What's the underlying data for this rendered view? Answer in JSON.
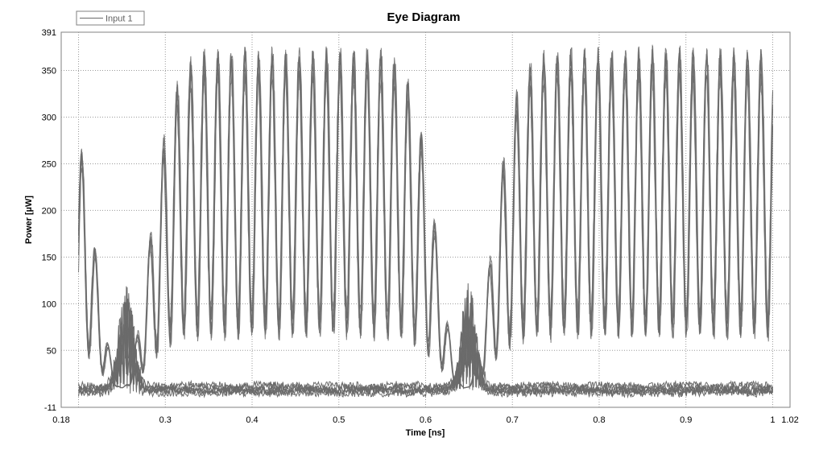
{
  "chart_data": {
    "type": "line",
    "title": "Eye Diagram",
    "xlabel": "Time [ns]",
    "ylabel": "Power [µW]",
    "xlim": [
      0.18,
      1.02
    ],
    "ylim": [
      -11,
      391
    ],
    "xticks": [
      "0.18",
      "0.3",
      "0.4",
      "0.5",
      "0.6",
      "0.7",
      "0.8",
      "0.9",
      "1",
      "1.02"
    ],
    "xtick_values": [
      0.18,
      0.3,
      0.4,
      0.5,
      0.6,
      0.7,
      0.8,
      0.9,
      1.0,
      1.02
    ],
    "yticks": [
      "-11",
      "50",
      "100",
      "150",
      "200",
      "250",
      "300",
      "350",
      "391"
    ],
    "ytick_values": [
      -11,
      50,
      100,
      150,
      200,
      250,
      300,
      350,
      391
    ],
    "vertical_gridlines": [
      0.2,
      0.3,
      0.4,
      0.5,
      0.6,
      0.7,
      0.8,
      0.9,
      1.0
    ],
    "grid": true,
    "legend": {
      "placement": "top-left",
      "entries": [
        "Input 1"
      ]
    },
    "series": [
      {
        "name": "Input 1",
        "color": "#6b6b6b",
        "x_start": 0.2,
        "x_end": 1.0
      }
    ]
  }
}
